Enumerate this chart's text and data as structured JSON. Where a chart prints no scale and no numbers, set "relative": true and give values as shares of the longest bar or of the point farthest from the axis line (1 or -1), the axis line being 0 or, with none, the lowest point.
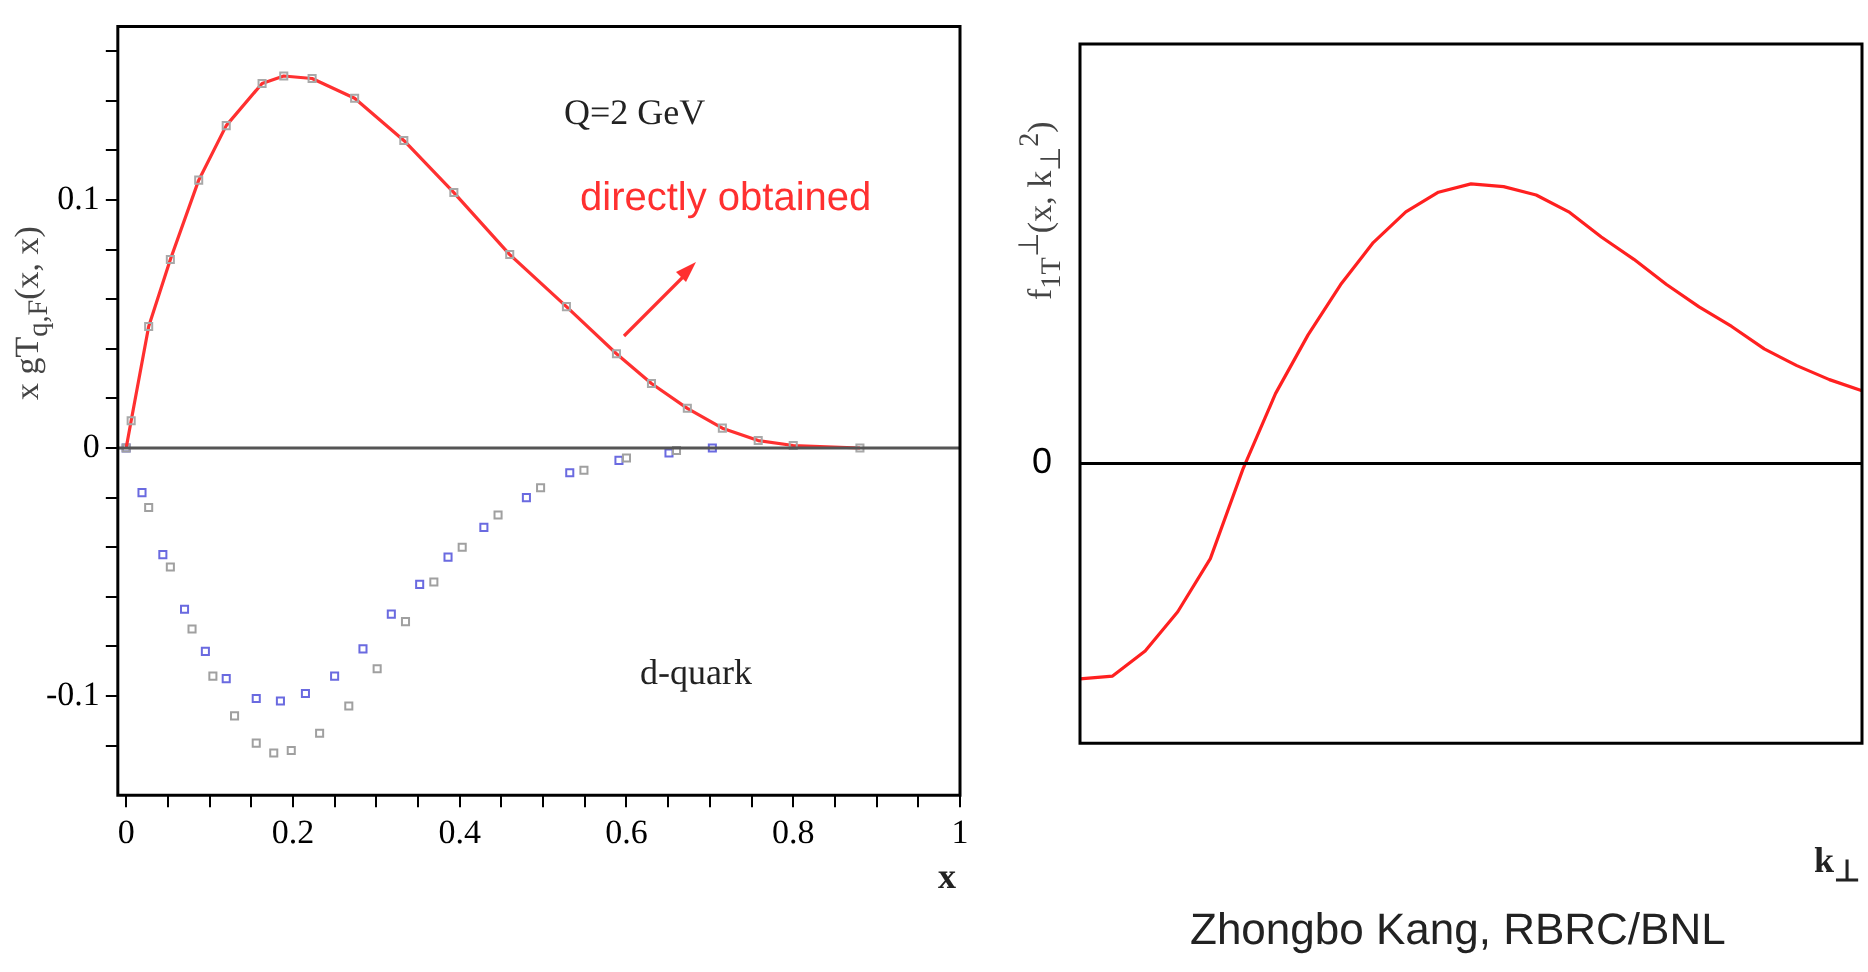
{
  "chart_data": [
    {
      "type": "line",
      "ylabel": "x gT$_{q,F}$(x, x)",
      "xlabel": "x",
      "xlim": [
        -0.01,
        1
      ],
      "ylim": [
        -0.14,
        0.17
      ],
      "xticks": [
        0,
        {
          "value": 0.05,
          "label": null
        },
        {
          "value": 0.1,
          "label": null
        },
        {
          "value": 0.15,
          "label": null
        },
        0.2,
        {
          "value": 0.25,
          "label": null
        },
        {
          "value": 0.3,
          "label": null
        },
        {
          "value": 0.35,
          "label": null
        },
        0.4,
        {
          "value": 0.45,
          "label": null
        },
        {
          "value": 0.5,
          "label": null
        },
        {
          "value": 0.55,
          "label": null
        },
        0.6,
        {
          "value": 0.65,
          "label": null
        },
        {
          "value": 0.7,
          "label": null
        },
        {
          "value": 0.75,
          "label": null
        },
        0.8,
        {
          "value": 0.85,
          "label": null
        },
        {
          "value": 0.9,
          "label": null
        },
        {
          "value": 0.95,
          "label": null
        },
        1
      ],
      "yticks": [
        {
          "value": -0.12,
          "label": null
        },
        -0.1,
        {
          "value": -0.08,
          "label": null
        },
        {
          "value": -0.06,
          "label": null
        },
        {
          "value": -0.04,
          "label": null
        },
        {
          "value": -0.02,
          "label": null
        },
        0,
        {
          "value": 0.02,
          "label": null
        },
        {
          "value": 0.04,
          "label": null
        },
        {
          "value": 0.06,
          "label": null
        },
        {
          "value": 0.08,
          "label": null
        },
        0.1,
        {
          "value": 0.12,
          "label": null
        },
        {
          "value": 0.14,
          "label": null
        },
        {
          "value": 0.16,
          "label": null
        }
      ],
      "grid": false,
      "legend": false,
      "ref_lines": [
        {
          "axis": "y",
          "value": 0,
          "color": "#555555"
        }
      ],
      "annotations": [
        "Q=2 GeV",
        "d-quark"
      ],
      "series": [
        {
          "type": "scatter",
          "marker": "square",
          "color": "#a8a8a8",
          "x": [
            0.006,
            0.027,
            0.053,
            0.087,
            0.12,
            0.163,
            0.189,
            0.223,
            0.274,
            0.333,
            0.393,
            0.46,
            0.528,
            0.588,
            0.63,
            0.673,
            0.715,
            0.758,
            0.8,
            0.88
          ],
          "values": [
            0.011,
            0.049,
            0.076,
            0.108,
            0.13,
            0.147,
            0.15,
            0.149,
            0.141,
            0.124,
            0.103,
            0.078,
            0.057,
            0.038,
            0.026,
            0.016,
            0.008,
            0.003,
            0.001,
            0
          ]
        },
        {
          "type": "line",
          "name": "directly obtained",
          "marker": "none",
          "color": "#ff3030",
          "x": [
            0,
            0.006,
            0.027,
            0.053,
            0.087,
            0.12,
            0.163,
            0.189,
            0.223,
            0.274,
            0.333,
            0.393,
            0.46,
            0.528,
            0.588,
            0.63,
            0.673,
            0.715,
            0.758,
            0.8,
            0.88
          ],
          "values": [
            0,
            0.011,
            0.049,
            0.076,
            0.108,
            0.13,
            0.147,
            0.15,
            0.149,
            0.141,
            0.124,
            0.103,
            0.078,
            0.057,
            0.038,
            0.026,
            0.016,
            0.008,
            0.003,
            0.001,
            0
          ]
        },
        {
          "type": "scatter",
          "marker": "square",
          "color": "#a0a0a0",
          "x": [
            0,
            0.027,
            0.053,
            0.079,
            0.104,
            0.13,
            0.156,
            0.177,
            0.198,
            0.232,
            0.267,
            0.301,
            0.335,
            0.369,
            0.403,
            0.446,
            0.497,
            0.549,
            0.6,
            0.66
          ],
          "values": [
            0,
            -0.024,
            -0.048,
            -0.073,
            -0.092,
            -0.108,
            -0.119,
            -0.123,
            -0.122,
            -0.115,
            -0.104,
            -0.089,
            -0.07,
            -0.054,
            -0.04,
            -0.027,
            -0.016,
            -0.009,
            -0.004,
            -0.001
          ]
        },
        {
          "type": "scatter",
          "marker": "square",
          "color": "#6a6ae0",
          "x": [
            0,
            0.019,
            0.044,
            0.07,
            0.095,
            0.12,
            0.156,
            0.185,
            0.215,
            0.25,
            0.284,
            0.318,
            0.352,
            0.386,
            0.429,
            0.48,
            0.532,
            0.591,
            0.651,
            0.703
          ],
          "values": [
            0,
            -0.018,
            -0.043,
            -0.065,
            -0.082,
            -0.093,
            -0.101,
            -0.102,
            -0.099,
            -0.092,
            -0.081,
            -0.067,
            -0.055,
            -0.044,
            -0.032,
            -0.02,
            -0.01,
            -0.005,
            -0.002,
            0
          ]
        }
      ]
    },
    {
      "type": "line",
      "relative": true,
      "ylabel": "f$_{1T}$$^{⊥}$(x, k$_{⊥}$$^{2}$)",
      "xlabel": "k$_{⊥}$",
      "grid": false,
      "legend": false,
      "ref_lines": [
        {
          "axis": "y",
          "value": 0,
          "label": "0",
          "color": "#000000"
        }
      ],
      "annotations": [
        "Zhongbo Kang, RBRC/BNL"
      ],
      "categories": [
        null,
        null,
        null,
        null,
        null,
        null,
        null,
        null,
        null,
        null,
        null,
        null,
        null,
        null,
        null,
        null,
        null,
        null,
        null,
        null,
        null,
        null,
        null,
        null,
        null
      ],
      "series": [
        {
          "color": "#ff2020",
          "marker": "none",
          "values": [
            -0.77,
            -0.76,
            -0.67,
            -0.53,
            -0.34,
            -0.02,
            0.25,
            0.46,
            0.64,
            0.79,
            0.9,
            0.97,
            1,
            0.99,
            0.96,
            0.9,
            0.81,
            0.73,
            0.64,
            0.56,
            0.49,
            0.41,
            0.35,
            0.3,
            0.26
          ]
        }
      ]
    }
  ]
}
